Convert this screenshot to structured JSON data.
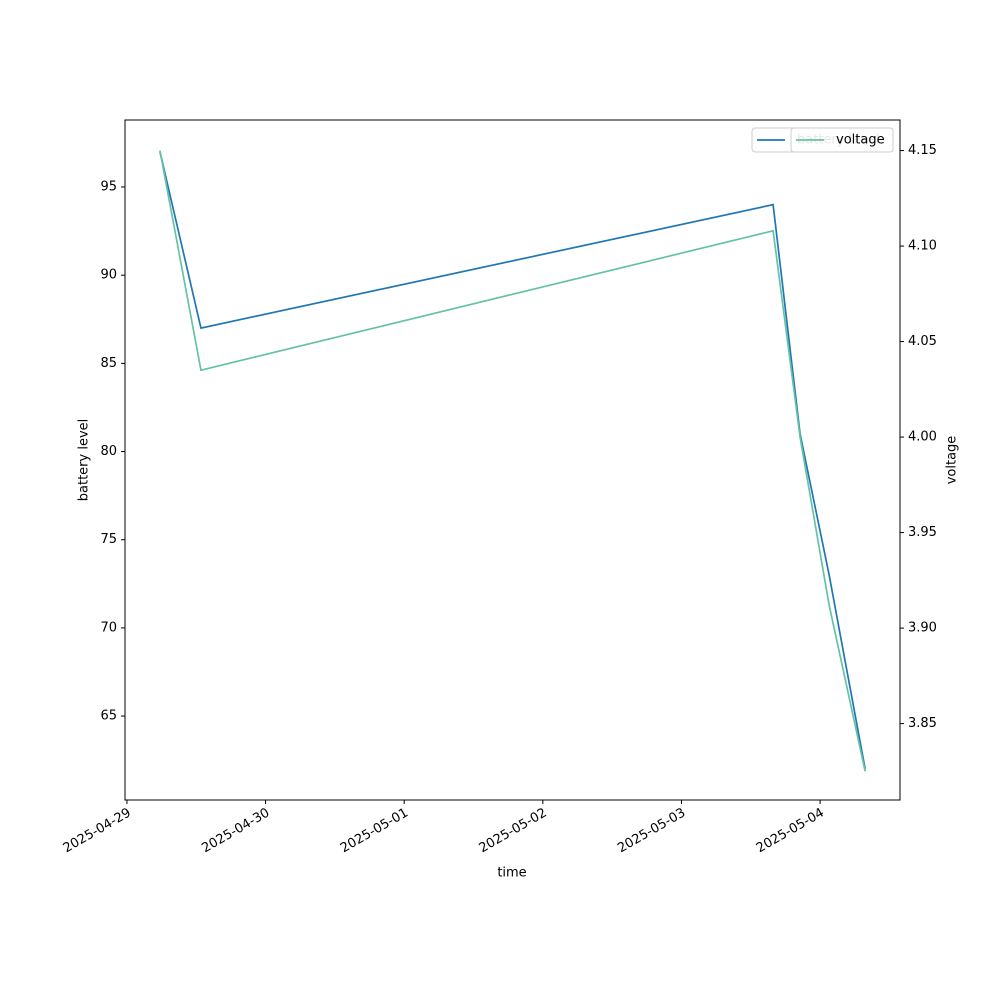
{
  "chart_data": {
    "type": "line",
    "x_label": "time",
    "y_label": "battery level",
    "y2_label": "voltage",
    "x": [
      "2025-04-29T05:43",
      "2025-04-29T12:49",
      "2025-05-03T15:52",
      "2025-05-03T20:32",
      "2025-05-04T01:34",
      "2025-05-04T07:48"
    ],
    "series": [
      {
        "name": "battery level",
        "color": "#1f77b4",
        "values": [
          97,
          87,
          94,
          81,
          73,
          62
        ]
      },
      {
        "name": "voltage",
        "color": "#66c2a5",
        "axis": "y2",
        "values": [
          4.15,
          4.035,
          4.108,
          4.0,
          3.912,
          3.825
        ]
      }
    ],
    "xlim": [
      "2025-04-28T23:40",
      "2025-05-04T13:50"
    ],
    "xticks": [
      "2025-04-29",
      "2025-04-30",
      "2025-05-01",
      "2025-05-02",
      "2025-05-03",
      "2025-05-04"
    ],
    "ylim": [
      60.24,
      98.8
    ],
    "yticks": [
      65,
      70,
      75,
      80,
      85,
      90,
      95
    ],
    "y2lim": [
      3.81,
      4.166
    ],
    "y2ticks": [
      {
        "value": 3.85,
        "label": "3.85"
      },
      {
        "value": 3.9,
        "label": "3.90"
      },
      {
        "value": 3.95,
        "label": "3.95"
      },
      {
        "value": 4.0,
        "label": "4.00"
      },
      {
        "value": 4.05,
        "label": "4.05"
      },
      {
        "value": 4.1,
        "label": "4.10"
      },
      {
        "value": 4.15,
        "label": "4.15"
      }
    ],
    "legend": "upper right",
    "grid": false
  }
}
